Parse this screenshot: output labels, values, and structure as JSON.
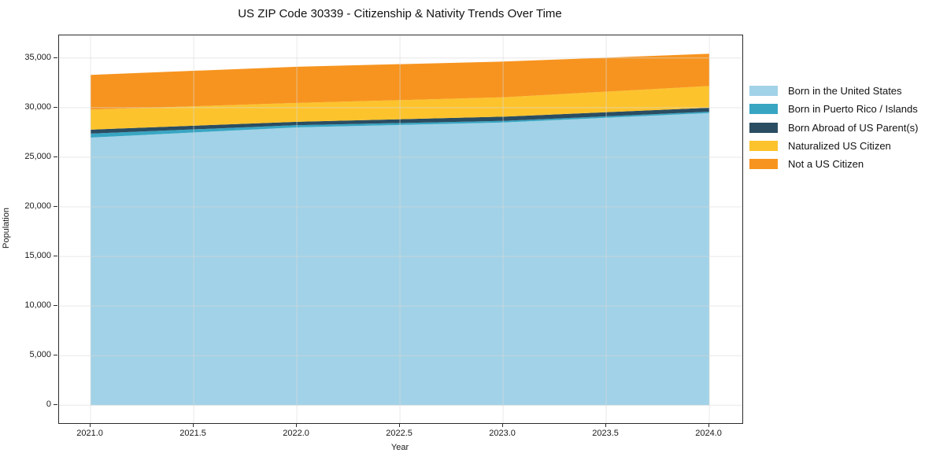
{
  "title": "US ZIP Code 30339 - Citizenship & Nativity Trends Over Time",
  "chart_data": {
    "type": "area",
    "stacked": true,
    "title": "US ZIP Code 30339 - Citizenship & Nativity Trends Over Time",
    "xlabel": "Year",
    "ylabel": "Population",
    "x": [
      2021,
      2022,
      2023,
      2024
    ],
    "series": [
      {
        "name": "Born in the United States",
        "color": "#a2d2e7",
        "values": [
          26980,
          28010,
          28500,
          29450
        ]
      },
      {
        "name": "Born in Puerto Rico / Islands",
        "color": "#38a6c3",
        "values": [
          400,
          220,
          160,
          140
        ]
      },
      {
        "name": "Born Abroad of US Parent(s)",
        "color": "#2a4d62",
        "values": [
          400,
          340,
          430,
          400
        ]
      },
      {
        "name": "Naturalized US Citizen",
        "color": "#fcc32d",
        "values": [
          2020,
          1900,
          1950,
          2190
        ]
      },
      {
        "name": "Not a US Citizen",
        "color": "#f7941f",
        "values": [
          3500,
          3650,
          3600,
          3250
        ]
      }
    ],
    "stack_totals": [
      33300,
      34120,
      34640,
      35430
    ],
    "xlim": [
      2020.847,
      2024.16
    ],
    "ylim": [
      -1800,
      37280
    ],
    "x_ticks": {
      "values": [
        2021.0,
        2021.5,
        2022.0,
        2022.5,
        2023.0,
        2023.5,
        2024.0
      ],
      "labels": [
        "2021.0",
        "2021.5",
        "2022.0",
        "2022.5",
        "2023.0",
        "2023.5",
        "2024.0"
      ]
    },
    "y_ticks": {
      "values": [
        0,
        5000,
        10000,
        15000,
        20000,
        25000,
        30000,
        35000
      ],
      "labels": [
        "0",
        "5,000",
        "10,000",
        "15,000",
        "20,000",
        "25,000",
        "30,000",
        "35,000"
      ]
    },
    "grid": true,
    "grid_color": "#d9d9d9",
    "legend_position": "right",
    "spine_color": "#2b2b2b",
    "text_color": "#1a1a1a"
  }
}
